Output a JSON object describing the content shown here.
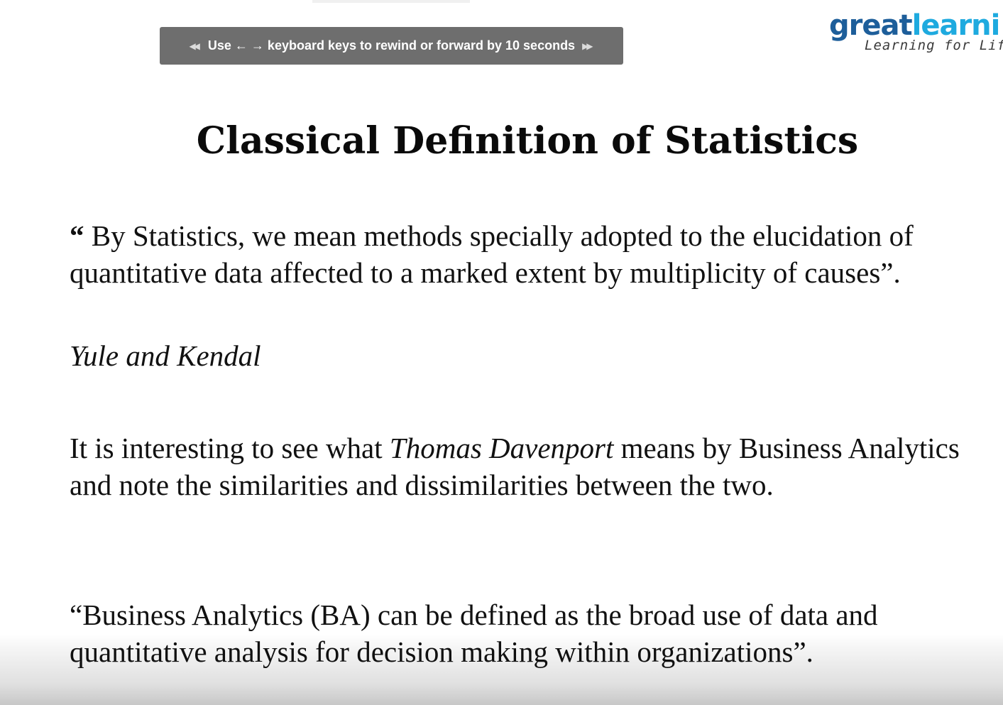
{
  "player_hint": {
    "left_icon": "rewind-icon",
    "text": "Use ← → keyboard keys to rewind or forward by 10 seconds",
    "right_icon": "fast-forward-icon"
  },
  "logo": {
    "word_part1": "great",
    "word_part2": "learni",
    "tagline": "Learning for Lif",
    "colors": {
      "great": "#1d5e9a",
      "learning": "#1eaadf"
    }
  },
  "slide": {
    "title": "Classical Definition of Statistics",
    "quote1": {
      "open": "“",
      "text": " By Statistics, we mean methods specially adopted to the elucidation of quantitative data affected to a marked extent by multiplicity of causes”."
    },
    "attribution": "Yule and Kendal",
    "para2": {
      "before": "It is interesting to see what ",
      "italic": "Thomas Davenport",
      "after": " means by Business Analytics and note the similarities and dissimilarities between the two."
    },
    "quote2": "“Business Analytics (BA) can be defined as the broad use of data and quantitative analysis for decision making within organizations”."
  }
}
